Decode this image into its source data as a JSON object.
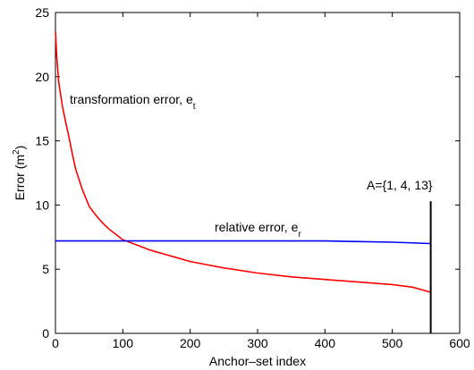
{
  "chart_data": {
    "type": "line",
    "xlabel": "Anchor–set index",
    "ylabel_main": "Error (m",
    "ylabel_sup": "2",
    "ylabel_close": ")",
    "xlim": [
      0,
      600
    ],
    "ylim": [
      0,
      25
    ],
    "xticks": [
      0,
      100,
      200,
      300,
      400,
      500,
      600
    ],
    "yticks": [
      0,
      5,
      10,
      15,
      20,
      25
    ],
    "grid": false,
    "series": [
      {
        "label_main": "transformation error, e",
        "label_sub": "t",
        "color": "#ff0000",
        "x": [
          0,
          2,
          5,
          8,
          10,
          15,
          20,
          25,
          30,
          40,
          50,
          60,
          70,
          80,
          90,
          100,
          120,
          140,
          160,
          180,
          200,
          220,
          250,
          300,
          350,
          400,
          450,
          500,
          530,
          557
        ],
        "y": [
          23.5,
          21.5,
          19.5,
          18.5,
          17.8,
          16.5,
          15.3,
          14.0,
          12.8,
          11.2,
          9.9,
          9.2,
          8.6,
          8.1,
          7.7,
          7.3,
          6.9,
          6.5,
          6.2,
          5.9,
          5.6,
          5.4,
          5.1,
          4.7,
          4.4,
          4.2,
          4.0,
          3.8,
          3.6,
          3.2
        ]
      },
      {
        "label_main": "relative error, e",
        "label_sub": "r",
        "color": "#0000ff",
        "x": [
          0,
          50,
          100,
          150,
          200,
          250,
          300,
          350,
          400,
          450,
          500,
          557
        ],
        "y": [
          7.2,
          7.2,
          7.2,
          7.2,
          7.2,
          7.2,
          7.2,
          7.2,
          7.2,
          7.15,
          7.1,
          7.0
        ]
      }
    ],
    "marker": {
      "x": 557,
      "y_top": 10.3,
      "label": "A={1, 4, 13}"
    }
  }
}
